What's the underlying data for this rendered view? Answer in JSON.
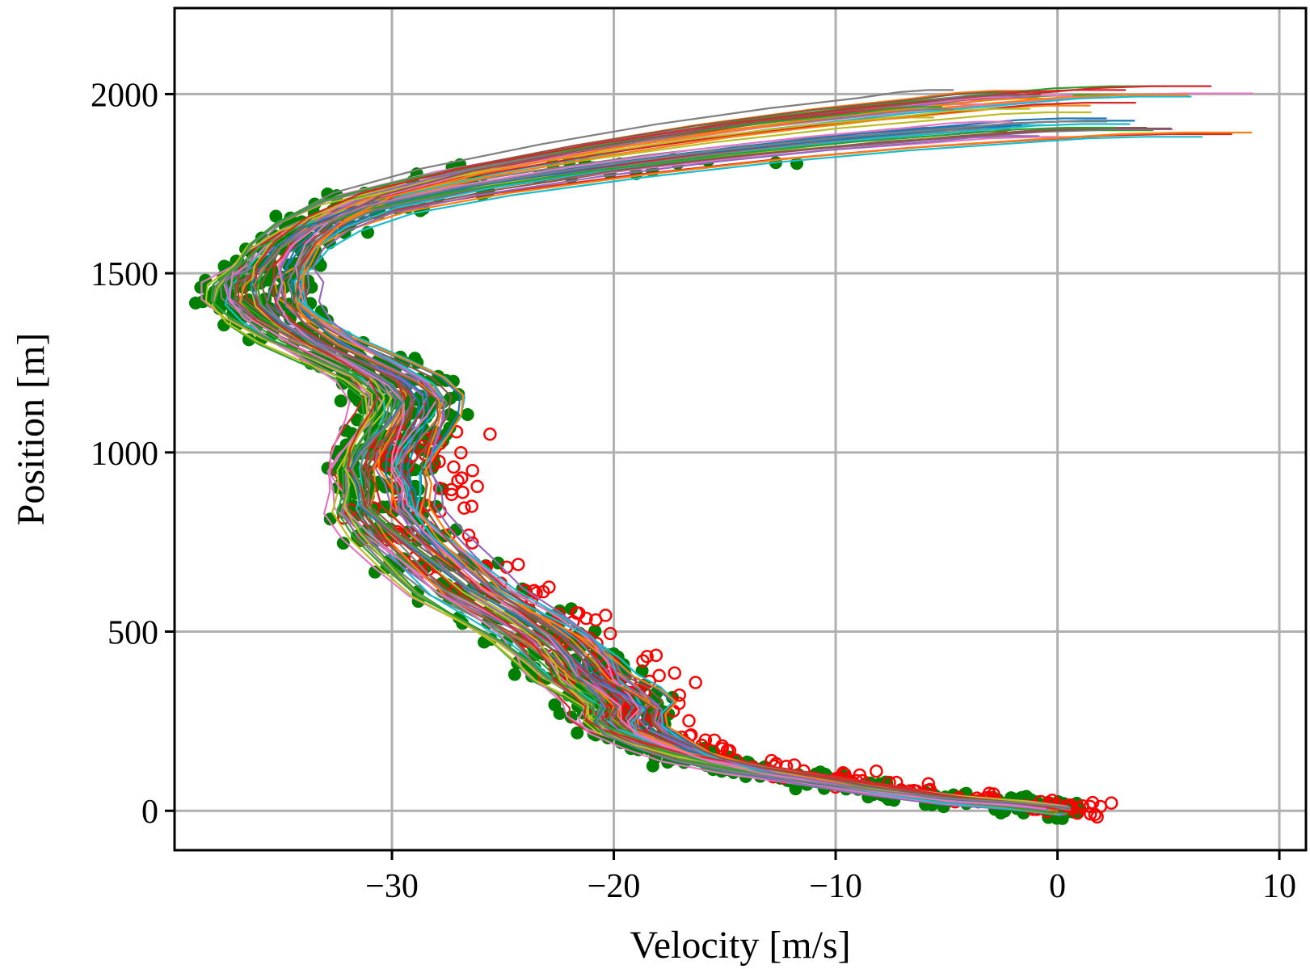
{
  "chart_data": {
    "type": "line",
    "title": "",
    "xlabel": "Velocity [m/s]",
    "ylabel": "Position [m]",
    "xlim": [
      -39.8,
      11.2
    ],
    "ylim": [
      -110,
      2240
    ],
    "grid": true,
    "xticks": [
      -30,
      -20,
      -10,
      0,
      10
    ],
    "xtick_labels": [
      "−30",
      "−20",
      "−10",
      "0",
      "10"
    ],
    "yticks": [
      0,
      500,
      1000,
      1500,
      2000
    ],
    "ytick_labels": [
      "0",
      "500",
      "1000",
      "1500",
      "2000"
    ],
    "num_series": 48,
    "series_colors": [
      "#1f77b4",
      "#ff7f0e",
      "#2ca02c",
      "#d62728",
      "#9467bd",
      "#8c564b",
      "#e377c2",
      "#7f7f7f",
      "#bcbd22",
      "#17becf"
    ],
    "marker_colors": {
      "green": "#008000",
      "red": "#ff0000"
    },
    "nominal_path": [
      [
        0,
        0
      ],
      [
        -2,
        15
      ],
      [
        -5,
        30
      ],
      [
        -8,
        55
      ],
      [
        -11,
        85
      ],
      [
        -14,
        115
      ],
      [
        -16.5,
        150
      ],
      [
        -18,
        185
      ],
      [
        -19.5,
        225
      ],
      [
        -20,
        260
      ],
      [
        -19.8,
        295
      ],
      [
        -20.5,
        335
      ],
      [
        -21.5,
        375
      ],
      [
        -22,
        420
      ],
      [
        -23,
        480
      ],
      [
        -24.5,
        540
      ],
      [
        -26.5,
        610
      ],
      [
        -28,
        690
      ],
      [
        -29.5,
        770
      ],
      [
        -30.5,
        840
      ],
      [
        -30.5,
        900
      ],
      [
        -30.8,
        950
      ],
      [
        -30.5,
        1000
      ],
      [
        -30,
        1050
      ],
      [
        -29.5,
        1100
      ],
      [
        -29.3,
        1150
      ],
      [
        -30,
        1200
      ],
      [
        -31.5,
        1250
      ],
      [
        -33.5,
        1310
      ],
      [
        -35,
        1370
      ],
      [
        -35.8,
        1420
      ],
      [
        -35.8,
        1470
      ],
      [
        -35.3,
        1520
      ],
      [
        -34.5,
        1580
      ],
      [
        -33,
        1640
      ],
      [
        -30.5,
        1700
      ],
      [
        -26,
        1760
      ],
      [
        -20,
        1820
      ],
      [
        -14,
        1870
      ],
      [
        -8,
        1910
      ],
      [
        -3,
        1935
      ],
      [
        0,
        1950
      ],
      [
        2.5,
        1955
      ],
      [
        5,
        1955
      ]
    ]
  }
}
